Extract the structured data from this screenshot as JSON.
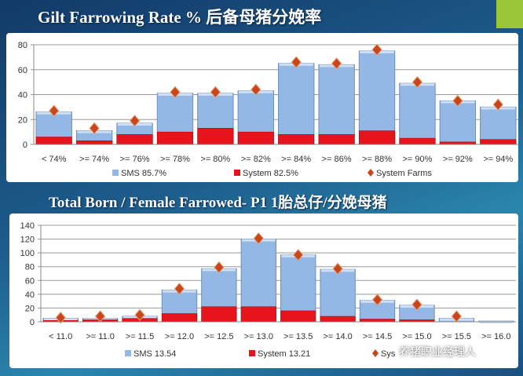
{
  "colors": {
    "sms": "#94b8e6",
    "system": "#e8141c",
    "farms": "#c9461c"
  },
  "watermark": "养猪职业经理人",
  "chart_data": [
    {
      "type": "bar",
      "title": "Gilt Farrowing Rate % 后备母猪分娩率",
      "categories": [
        "< 74%",
        ">= 74%",
        ">= 76%",
        ">= 78%",
        ">= 80%",
        ">= 82%",
        ">= 84%",
        ">= 86%",
        ">= 88%",
        ">= 90%",
        ">= 92%",
        ">= 94%"
      ],
      "ylim": [
        0,
        80
      ],
      "yticks": [
        0,
        20,
        40,
        60,
        80
      ],
      "grid": true,
      "legend_position": "bottom",
      "series": [
        {
          "name": "SMS 85.7%",
          "type": "bar",
          "values": [
            26,
            11,
            17,
            41,
            41,
            43,
            65,
            64,
            75,
            49,
            35,
            30
          ]
        },
        {
          "name": "System 82.5%",
          "type": "bar",
          "values": [
            6,
            3,
            8,
            10,
            13,
            10,
            8,
            8,
            11,
            5,
            2,
            4
          ]
        },
        {
          "name": "System Farms",
          "type": "marker",
          "values": [
            27,
            13,
            19,
            42,
            42,
            44,
            66,
            65,
            76,
            50,
            35,
            32
          ]
        }
      ]
    },
    {
      "type": "bar",
      "title": "Total Born / Female Farrowed- P1 1胎总仔/分娩母猪",
      "categories": [
        "< 11.0",
        ">= 11.0",
        ">= 11.5",
        ">= 12.0",
        ">= 12.5",
        ">= 13.0",
        ">= 13.5",
        ">= 14.0",
        ">= 14.5",
        ">= 15.0",
        ">= 15.5",
        ">= 16.0"
      ],
      "ylim": [
        0,
        140
      ],
      "yticks": [
        0,
        20,
        40,
        60,
        80,
        100,
        120,
        140
      ],
      "grid": true,
      "legend_position": "bottom",
      "series": [
        {
          "name": "SMS 13.54",
          "type": "bar",
          "values": [
            5,
            5,
            8,
            46,
            77,
            120,
            97,
            76,
            31,
            24,
            5,
            1
          ]
        },
        {
          "name": "System 13.21",
          "type": "bar",
          "values": [
            2,
            3,
            5,
            12,
            22,
            22,
            16,
            8,
            4,
            3,
            0,
            0
          ]
        },
        {
          "name": "Sys",
          "type": "marker",
          "values": [
            6,
            8,
            10,
            48,
            79,
            121,
            97,
            77,
            32,
            25,
            8,
            null
          ]
        }
      ]
    }
  ]
}
